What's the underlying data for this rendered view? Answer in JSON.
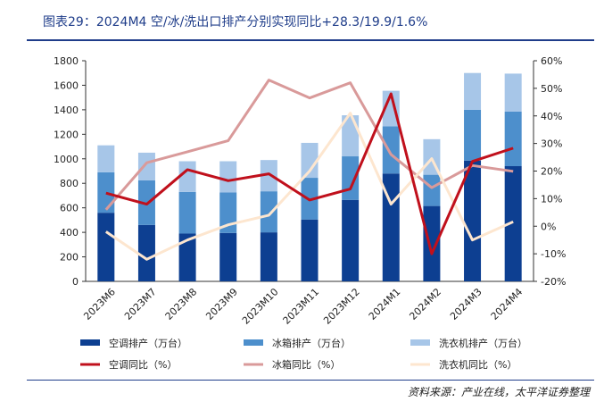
{
  "header": {
    "title": "图表29：2024M4 空/冰/洗出口排产分别实现同比+28.3/19.9/1.6%"
  },
  "footer": {
    "source": "资料来源：产业在线，太平洋证券整理"
  },
  "colors": {
    "title": "#1f3d8a",
    "ac_bar": "#0d3f91",
    "fridge_bar": "#4d8fcc",
    "washer_bar": "#a7c6e8",
    "ac_line": "#c0101c",
    "fridge_line": "#d99a9a",
    "washer_line": "#fde6cf"
  },
  "chart_data": {
    "type": "bar",
    "stacked": true,
    "categories": [
      "2023M6",
      "2023M7",
      "2023M8",
      "2023M9",
      "2023M10",
      "2023M11",
      "2023M12",
      "2024M1",
      "2024M2",
      "2024M3",
      "2024M4"
    ],
    "series": [
      {
        "name": "空调排产（万台）",
        "kind": "bar",
        "axis": "left",
        "values": [
          560,
          460,
          390,
          395,
          400,
          505,
          665,
          880,
          615,
          985,
          940
        ]
      },
      {
        "name": "冰箱排产（万台）",
        "kind": "bar",
        "axis": "left",
        "values": [
          330,
          365,
          340,
          330,
          335,
          340,
          355,
          385,
          255,
          415,
          445
        ]
      },
      {
        "name": "洗衣机排产（万台）",
        "kind": "bar",
        "axis": "left",
        "values": [
          220,
          225,
          250,
          255,
          255,
          285,
          335,
          290,
          290,
          300,
          310
        ]
      },
      {
        "name": "空调同比（%）",
        "kind": "line",
        "axis": "right",
        "values": [
          12.0,
          8.0,
          20.5,
          16.5,
          19.0,
          9.5,
          13.5,
          48.0,
          -10.0,
          23.5,
          28.3
        ]
      },
      {
        "name": "冰箱同比（%）",
        "kind": "line",
        "axis": "right",
        "values": [
          6.0,
          23.0,
          27.0,
          31.0,
          53.0,
          46.5,
          52.0,
          26.0,
          14.0,
          22.0,
          19.9
        ]
      },
      {
        "name": "洗衣机同比（%）",
        "kind": "line",
        "axis": "right",
        "values": [
          -2.0,
          -12.0,
          -5.0,
          0.5,
          4.0,
          20.0,
          41.0,
          8.0,
          24.5,
          -5.0,
          1.6
        ]
      }
    ],
    "y_left": {
      "min": 0,
      "max": 1800,
      "ticks": [
        "0",
        "200",
        "400",
        "600",
        "800",
        "1000",
        "1200",
        "1400",
        "1600",
        "1800"
      ]
    },
    "y_right": {
      "min": -20,
      "max": 60,
      "ticks": [
        "-20%",
        "-10%",
        "0%",
        "10%",
        "20%",
        "30%",
        "40%",
        "50%",
        "60%"
      ]
    },
    "legend_position": "bottom",
    "grid": false
  }
}
